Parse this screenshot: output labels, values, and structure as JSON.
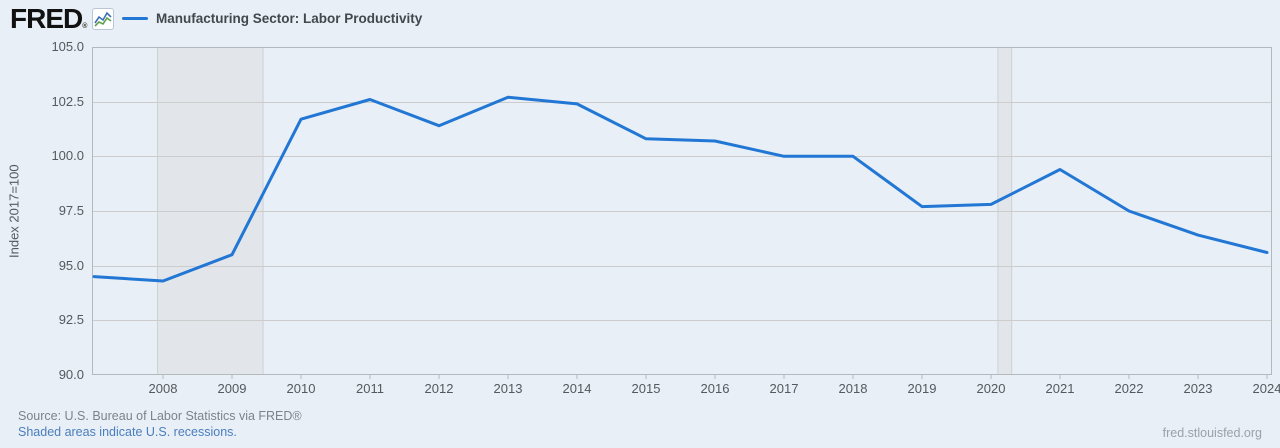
{
  "header": {
    "logo_text": "FRED",
    "logo_mark": "®",
    "legend": {
      "label": "Manufacturing Sector: Labor Productivity"
    }
  },
  "chart_data": {
    "type": "line",
    "title": "Manufacturing Sector: Labor Productivity",
    "ylabel": "Index 2017=100",
    "x": [
      2007,
      2008,
      2009,
      2010,
      2011,
      2012,
      2013,
      2014,
      2015,
      2016,
      2017,
      2018,
      2019,
      2020,
      2021,
      2022,
      2023,
      2024
    ],
    "values": [
      94.5,
      94.3,
      95.5,
      101.7,
      102.6,
      101.4,
      102.7,
      102.4,
      100.8,
      100.7,
      100.0,
      100.0,
      97.7,
      97.8,
      99.4,
      97.5,
      96.4,
      95.6
    ],
    "ylim": [
      90.0,
      105.0
    ],
    "yticks": [
      105.0,
      102.5,
      100.0,
      97.5,
      95.0,
      92.5,
      90.0
    ],
    "xticks": [
      2008,
      2009,
      2010,
      2011,
      2012,
      2013,
      2014,
      2015,
      2016,
      2017,
      2018,
      2019,
      2020,
      2021,
      2022,
      2023,
      2024
    ],
    "grid": true,
    "legend_position": "top-left",
    "line_color": "#2277d4",
    "band_color": "#e2e6ea",
    "band_edge_color": "#ccd1d7",
    "grid_color": "#cccccc",
    "border_color": "#b4b9be",
    "recession_bands": [
      [
        2007.92,
        2009.45
      ],
      [
        2020.1,
        2020.3
      ]
    ]
  },
  "footer": {
    "source": "Source: U.S. Bureau of Labor Statistics via FRED®",
    "recession_note": "Shaded areas indicate U.S. recessions.",
    "site": "fred.stlouisfed.org"
  }
}
